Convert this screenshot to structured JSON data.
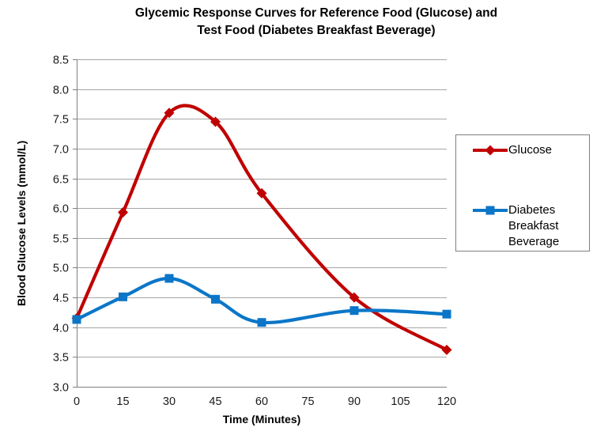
{
  "title": {
    "line1": "Glycemic Response Curves for Reference Food (Glucose) and",
    "line2": "Test Food (Diabetes Breakfast Beverage)"
  },
  "chart_data": {
    "type": "line",
    "x": [
      0,
      15,
      30,
      45,
      60,
      90,
      120
    ],
    "series": [
      {
        "name": "Glucose",
        "color": "#C00000",
        "marker": "diamond",
        "values": [
          4.15,
          5.93,
          7.6,
          7.45,
          6.25,
          4.5,
          3.62
        ]
      },
      {
        "name": "Diabetes Breakfast Beverage",
        "color": "#0B76C8",
        "marker": "square",
        "values": [
          4.13,
          4.51,
          4.82,
          4.47,
          4.08,
          4.28,
          4.22
        ]
      }
    ],
    "title": "Glycemic Response Curves for Reference Food (Glucose) and Test Food (Diabetes Breakfast Beverage)",
    "xlabel": "Time (Minutes)",
    "ylabel": "Blood Glucose Levels (mmol/L)",
    "xlim": [
      0,
      120
    ],
    "ylim": [
      3.0,
      8.5
    ],
    "x_ticks": [
      0,
      15,
      30,
      45,
      60,
      75,
      90,
      105,
      120
    ],
    "y_ticks": [
      3.0,
      3.5,
      4.0,
      4.5,
      5.0,
      5.5,
      6.0,
      6.5,
      7.0,
      7.5,
      8.0,
      8.5
    ],
    "grid": "horizontal",
    "smooth_lines": true,
    "legend_position": "right",
    "colors": {
      "gridline": "#A6A6A6",
      "axis": "#7F7F7F",
      "tick_text": "#1a1a1a"
    }
  }
}
